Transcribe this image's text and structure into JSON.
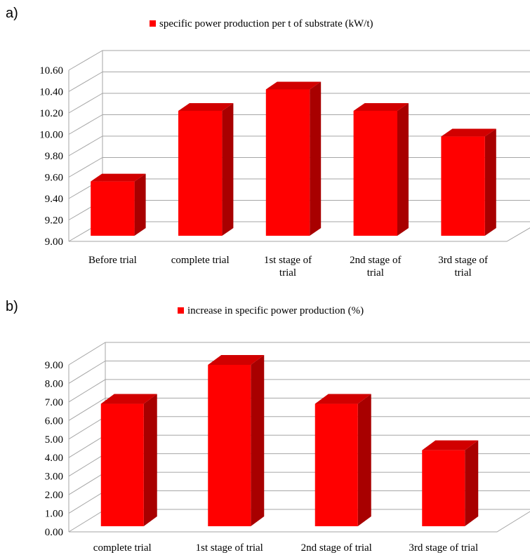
{
  "panels": [
    {
      "label": "a)"
    },
    {
      "label": "b)"
    }
  ],
  "chart_data": [
    {
      "type": "bar",
      "legend": "specific power production per t of substrate (kW/t)",
      "legend_position": "top-center",
      "categories": [
        "Before trial",
        "complete trial",
        "1st stage of trial",
        "2nd stage of trial",
        "3rd stage of trial"
      ],
      "values": [
        9.56,
        10.22,
        10.42,
        10.22,
        9.98
      ],
      "ylim": [
        9.0,
        10.6
      ],
      "yticks": [
        "9.00",
        "9.20",
        "9.40",
        "9.60",
        "9.80",
        "10.00",
        "10.20",
        "10.40",
        "10.60"
      ],
      "grid": true,
      "style": "3d",
      "color": "#ff0000"
    },
    {
      "type": "bar",
      "legend": "increase in specific power production (%)",
      "legend_position": "top-center",
      "categories": [
        "complete trial",
        "1st stage of trial",
        "2nd stage of trial",
        "3rd stage of trial"
      ],
      "values": [
        6.9,
        9.0,
        6.9,
        4.4
      ],
      "ylim": [
        0,
        9.0
      ],
      "yticks": [
        "0.00",
        "1.00",
        "2.00",
        "3.00",
        "4.00",
        "5.00",
        "6.00",
        "7.00",
        "8.00",
        "9.00"
      ],
      "grid": true,
      "style": "3d",
      "color": "#ff0000"
    }
  ]
}
